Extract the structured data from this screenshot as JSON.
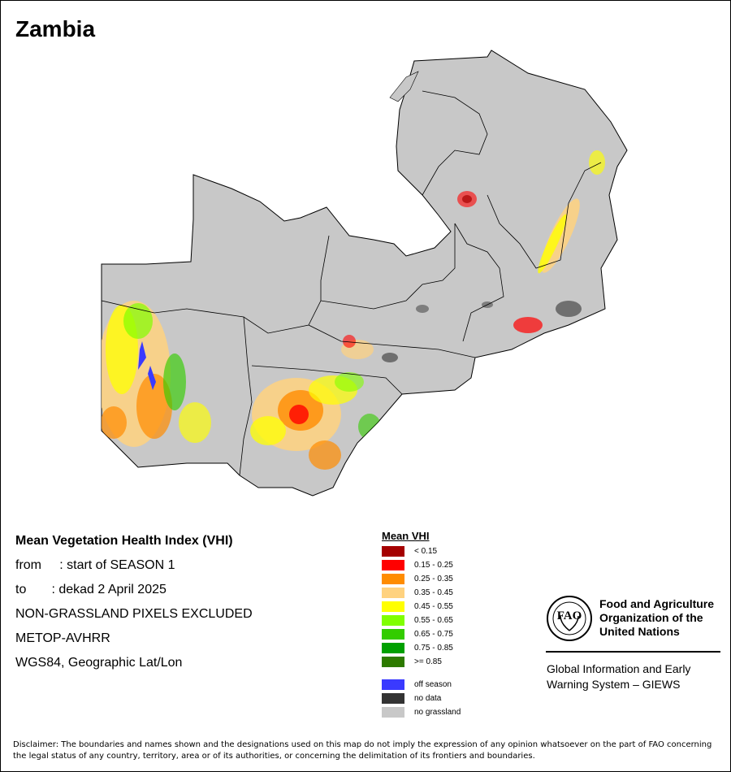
{
  "map_title": "Zambia",
  "info": {
    "heading": "Mean Vegetation Health Index (VHI)",
    "from_line": "from     : start of SEASON 1",
    "to_line": "to       : dekad 2 April 2025",
    "exclusion": "NON-GRASSLAND PIXELS EXCLUDED",
    "sensor": "METOP-AVHRR",
    "projection": "WGS84, Geographic Lat/Lon"
  },
  "legend": {
    "title": "Mean VHI",
    "items": [
      {
        "label": "< 0.15",
        "color": "#a50000"
      },
      {
        "label": "0.15 - 0.25",
        "color": "#ff0000"
      },
      {
        "label": "0.25 - 0.35",
        "color": "#ff8c00"
      },
      {
        "label": "0.35 - 0.45",
        "color": "#ffd27f"
      },
      {
        "label": "0.45 - 0.55",
        "color": "#ffff00"
      },
      {
        "label": "0.55 - 0.65",
        "color": "#80ff00"
      },
      {
        "label": "0.65 - 0.75",
        "color": "#33cc00"
      },
      {
        "label": "0.75 - 0.85",
        "color": "#00a000"
      },
      {
        "label": ">= 0.85",
        "color": "#2d7a00"
      }
    ],
    "extra": [
      {
        "label": "off season",
        "color": "#3a3aff"
      },
      {
        "label": "no data",
        "color": "#333333"
      },
      {
        "label": "no grassland",
        "color": "#c8c8c8"
      }
    ]
  },
  "org": {
    "logo_text": "FAO",
    "name_lines": [
      "Food and Agriculture",
      "Organization of the",
      "United Nations"
    ],
    "giews_lines": [
      "Global Information and Early",
      "Warning System – GIEWS"
    ]
  },
  "disclaimer": "Disclaimer: The boundaries and names shown and the designations used on this map do not imply the expression of any opinion whatsoever on the part of FAO concerning the legal status of any country, territory, area or of its authorities, or concerning the delimitation of its frontiers and boundaries."
}
